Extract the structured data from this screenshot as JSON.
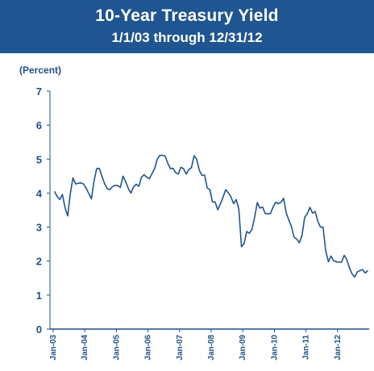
{
  "chart_data": {
    "type": "line",
    "title": "10-Year Treasury Yield",
    "subtitle": "1/1/03 through 12/31/12",
    "ylabel": "(Percent)",
    "xlabel": "",
    "ylim": [
      0,
      7
    ],
    "yticks": [
      0,
      1,
      2,
      3,
      4,
      5,
      6,
      7
    ],
    "xlim": [
      "2003-01-01",
      "2012-12-31"
    ],
    "xticks": [
      "Jan-03",
      "Jan-04",
      "Jan-05",
      "Jan-06",
      "Jan-07",
      "Jan-08",
      "Jan-09",
      "Jan-10",
      "Jan-11",
      "Jan-12"
    ],
    "grid": false,
    "legend": "none",
    "line_color": "#1f5590",
    "series": [
      {
        "x": [
          "2003-01",
          "2003-02",
          "2003-03",
          "2003-04",
          "2003-05",
          "2003-06",
          "2003-07",
          "2003-08",
          "2003-09",
          "2003-10",
          "2003-11",
          "2003-12",
          "2004-01",
          "2004-02",
          "2004-03",
          "2004-04",
          "2004-05",
          "2004-06",
          "2004-07",
          "2004-08",
          "2004-09",
          "2004-10",
          "2004-11",
          "2004-12",
          "2005-01",
          "2005-02",
          "2005-03",
          "2005-04",
          "2005-05",
          "2005-06",
          "2005-07",
          "2005-08",
          "2005-09",
          "2005-10",
          "2005-11",
          "2005-12",
          "2006-01",
          "2006-02",
          "2006-03",
          "2006-04",
          "2006-05",
          "2006-06",
          "2006-07",
          "2006-08",
          "2006-09",
          "2006-10",
          "2006-11",
          "2006-12",
          "2007-01",
          "2007-02",
          "2007-03",
          "2007-04",
          "2007-05",
          "2007-06",
          "2007-07",
          "2007-08",
          "2007-09",
          "2007-10",
          "2007-11",
          "2007-12",
          "2008-01",
          "2008-02",
          "2008-03",
          "2008-04",
          "2008-05",
          "2008-06",
          "2008-07",
          "2008-08",
          "2008-09",
          "2008-10",
          "2008-11",
          "2008-12",
          "2009-01",
          "2009-02",
          "2009-03",
          "2009-04",
          "2009-05",
          "2009-06",
          "2009-07",
          "2009-08",
          "2009-09",
          "2009-10",
          "2009-11",
          "2009-12",
          "2010-01",
          "2010-02",
          "2010-03",
          "2010-04",
          "2010-05",
          "2010-06",
          "2010-07",
          "2010-08",
          "2010-09",
          "2010-10",
          "2010-11",
          "2010-12",
          "2011-01",
          "2011-02",
          "2011-03",
          "2011-04",
          "2011-05",
          "2011-06",
          "2011-07",
          "2011-08",
          "2011-09",
          "2011-10",
          "2011-11",
          "2011-12",
          "2012-01",
          "2012-02",
          "2012-03",
          "2012-04",
          "2012-05",
          "2012-06",
          "2012-07",
          "2012-08",
          "2012-09",
          "2012-10",
          "2012-11",
          "2012-12"
        ],
        "values": [
          4.05,
          3.9,
          3.81,
          3.96,
          3.57,
          3.33,
          3.98,
          4.45,
          4.27,
          4.29,
          4.3,
          4.27,
          4.15,
          3.99,
          3.83,
          4.35,
          4.72,
          4.73,
          4.5,
          4.28,
          4.13,
          4.1,
          4.19,
          4.23,
          4.22,
          4.17,
          4.5,
          4.34,
          4.14,
          4.0,
          4.18,
          4.26,
          4.2,
          4.46,
          4.54,
          4.47,
          4.42,
          4.57,
          4.72,
          4.99,
          5.11,
          5.11,
          5.09,
          4.88,
          4.72,
          4.73,
          4.6,
          4.56,
          4.76,
          4.72,
          4.56,
          4.69,
          4.75,
          5.1,
          5.0,
          4.67,
          4.52,
          4.53,
          4.15,
          4.1,
          3.74,
          3.74,
          3.51,
          3.68,
          3.88,
          4.1,
          4.01,
          3.89,
          3.69,
          3.81,
          3.53,
          2.42,
          2.52,
          2.87,
          2.82,
          2.93,
          3.29,
          3.72,
          3.56,
          3.59,
          3.4,
          3.39,
          3.4,
          3.59,
          3.73,
          3.69,
          3.73,
          3.85,
          3.42,
          3.2,
          3.01,
          2.7,
          2.65,
          2.54,
          2.76,
          3.29,
          3.39,
          3.58,
          3.41,
          3.46,
          3.17,
          3.0,
          3.0,
          2.3,
          1.98,
          2.15,
          2.01,
          1.98,
          1.97,
          1.97,
          2.17,
          2.05,
          1.8,
          1.62,
          1.53,
          1.68,
          1.72,
          1.75,
          1.65,
          1.72
        ]
      }
    ]
  }
}
